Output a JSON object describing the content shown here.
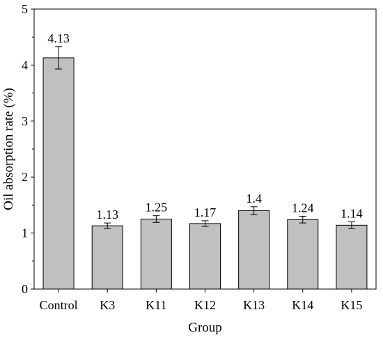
{
  "chart_data": {
    "type": "bar",
    "xlabel": "Group",
    "ylabel": "Oil absorption rate (%)",
    "ylim": [
      0,
      5
    ],
    "yticks": [
      0,
      1,
      2,
      3,
      4,
      5
    ],
    "grid": false,
    "categories": [
      "Control",
      "K3",
      "K11",
      "K12",
      "K13",
      "K14",
      "K15"
    ],
    "values": [
      4.13,
      1.13,
      1.25,
      1.17,
      1.4,
      1.24,
      1.14
    ],
    "errors": [
      0.2,
      0.05,
      0.06,
      0.05,
      0.07,
      0.06,
      0.06
    ],
    "value_labels": [
      "4.13",
      "1.13",
      "1.25",
      "1.17",
      "1.4",
      "1.24",
      "1.14"
    ],
    "bar_color": "#c0c0c0",
    "edge_color": "#000000"
  }
}
